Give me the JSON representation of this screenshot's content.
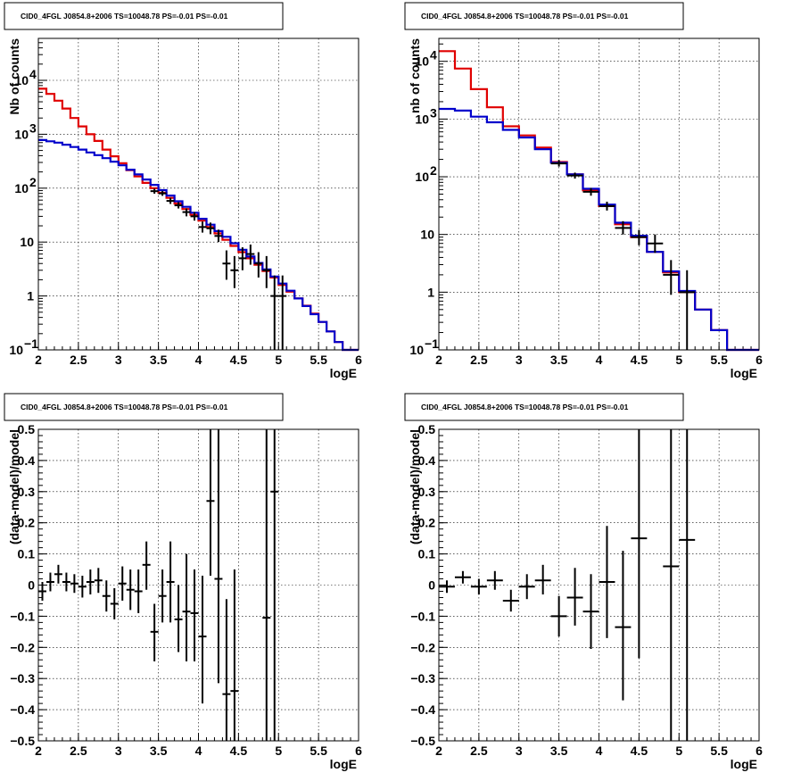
{
  "colors": {
    "data": "#000000",
    "model_total": "#e00000",
    "model_alt": "#0000cc"
  },
  "chart_data": [
    {
      "type": "line",
      "title": "CID0_4FGL J0854.8+2006 TS=10048.78 PS=-0.01 PS=-0.01",
      "xlabel": "logE",
      "ylabel": "Nb of counts",
      "xlim": [
        2,
        6
      ],
      "ylim": [
        0.1,
        60000
      ],
      "ylog": true,
      "grid": true,
      "xticks": [
        "2",
        "2.5",
        "3",
        "3.5",
        "4",
        "4.5",
        "5",
        "5.5",
        "6"
      ],
      "yticks": [
        {
          "v": 0.1,
          "base": "10",
          "exp": "−1"
        },
        {
          "v": 1,
          "base": "1",
          "exp": ""
        },
        {
          "v": 10,
          "base": "10",
          "exp": ""
        },
        {
          "v": 100,
          "base": "10",
          "exp": "2"
        },
        {
          "v": 1000,
          "base": "10",
          "exp": "3"
        },
        {
          "v": 10000,
          "base": "10",
          "exp": "4"
        }
      ],
      "bin_width": 0.1,
      "series": [
        {
          "color": "#e00000",
          "x0": 2.0,
          "values": [
            7000,
            5600,
            4200,
            3000,
            2000,
            1400,
            1000,
            750,
            520,
            390,
            290,
            215,
            165,
            125,
            100,
            82,
            66,
            52,
            41,
            32,
            25,
            19,
            14.5,
            11,
            8.5,
            6.5,
            5,
            3.8,
            2.9,
            2.2,
            1.6,
            1.2,
            0.9,
            0.66,
            0.47,
            0.33,
            0.22,
            0.14,
            0.1,
            0.1
          ]
        },
        {
          "color": "#0000cc",
          "x0": 2.0,
          "values": [
            780,
            740,
            700,
            640,
            580,
            520,
            460,
            410,
            360,
            310,
            265,
            220,
            180,
            145,
            115,
            92,
            73,
            57,
            45,
            35,
            27,
            21,
            16,
            12.5,
            9.5,
            7.2,
            5.4,
            4.1,
            3.1,
            2.3,
            1.7,
            1.25,
            0.9,
            0.65,
            0.46,
            0.33,
            0.22,
            0.14,
            0.1,
            0.1
          ]
        }
      ],
      "points": [
        {
          "x": 3.45,
          "y": 88,
          "lo": 79,
          "hi": 98
        },
        {
          "x": 3.55,
          "y": 80,
          "lo": 72,
          "hi": 89
        },
        {
          "x": 3.65,
          "y": 58,
          "lo": 51,
          "hi": 66
        },
        {
          "x": 3.75,
          "y": 48,
          "lo": 42,
          "hi": 55
        },
        {
          "x": 3.85,
          "y": 36,
          "lo": 30,
          "hi": 42
        },
        {
          "x": 3.95,
          "y": 30,
          "lo": 25,
          "hi": 36
        },
        {
          "x": 4.05,
          "y": 19,
          "lo": 15,
          "hi": 24
        },
        {
          "x": 4.15,
          "y": 18,
          "lo": 14,
          "hi": 23
        },
        {
          "x": 4.25,
          "y": 13,
          "lo": 10,
          "hi": 17
        },
        {
          "x": 4.35,
          "y": 4,
          "lo": 2,
          "hi": 7
        },
        {
          "x": 4.45,
          "y": 3,
          "lo": 1.4,
          "hi": 5.5
        },
        {
          "x": 4.55,
          "y": 5,
          "lo": 3,
          "hi": 8
        },
        {
          "x": 4.65,
          "y": 6,
          "lo": 3.8,
          "hi": 9
        },
        {
          "x": 4.75,
          "y": 4,
          "lo": 2.2,
          "hi": 6.5
        },
        {
          "x": 4.85,
          "y": 3,
          "lo": 1.4,
          "hi": 5.5
        },
        {
          "x": 4.95,
          "y": 1,
          "lo": 0.1,
          "hi": 2.4
        },
        {
          "x": 5.05,
          "y": 1,
          "lo": 0.1,
          "hi": 2.4
        }
      ]
    },
    {
      "type": "line",
      "title": "CID0_4FGL J0854.8+2006 TS=10048.78 PS=-0.01 PS=-0.01",
      "xlabel": "logE",
      "ylabel": "nb of counts",
      "xlim": [
        2,
        6
      ],
      "ylim": [
        0.1,
        25000
      ],
      "ylog": true,
      "grid": true,
      "xticks": [
        "2",
        "2.5",
        "3",
        "3.5",
        "4",
        "4.5",
        "5",
        "5.5",
        "6"
      ],
      "yticks": [
        {
          "v": 0.1,
          "base": "10",
          "exp": "−1"
        },
        {
          "v": 1,
          "base": "1",
          "exp": ""
        },
        {
          "v": 10,
          "base": "10",
          "exp": ""
        },
        {
          "v": 100,
          "base": "10",
          "exp": "2"
        },
        {
          "v": 1000,
          "base": "10",
          "exp": "3"
        },
        {
          "v": 10000,
          "base": "10",
          "exp": "4"
        }
      ],
      "bin_width": 0.2,
      "series": [
        {
          "color": "#e00000",
          "x0": 2.0,
          "values": [
            15000,
            7500,
            3300,
            1600,
            750,
            520,
            320,
            180,
            110,
            58,
            31,
            15,
            9,
            5,
            2.2,
            1,
            0.5,
            0.22,
            0.1,
            0.1
          ]
        },
        {
          "color": "#0000cc",
          "x0": 2.0,
          "values": [
            1500,
            1400,
            1100,
            880,
            650,
            480,
            300,
            175,
            110,
            62,
            33,
            16,
            9.5,
            5,
            2.3,
            1.05,
            0.5,
            0.22,
            0.1,
            0.1
          ]
        }
      ],
      "points": [
        {
          "x": 3.5,
          "y": 170,
          "lo": 150,
          "hi": 195
        },
        {
          "x": 3.7,
          "y": 105,
          "lo": 93,
          "hi": 118
        },
        {
          "x": 3.9,
          "y": 55,
          "lo": 47,
          "hi": 64
        },
        {
          "x": 4.1,
          "y": 31,
          "lo": 26,
          "hi": 37
        },
        {
          "x": 4.3,
          "y": 13,
          "lo": 10,
          "hi": 17
        },
        {
          "x": 4.5,
          "y": 9,
          "lo": 6.5,
          "hi": 12
        },
        {
          "x": 4.7,
          "y": 7,
          "lo": 4.8,
          "hi": 10
        },
        {
          "x": 4.9,
          "y": 2,
          "lo": 0.9,
          "hi": 3.6
        },
        {
          "x": 5.1,
          "y": 1,
          "lo": 0.1,
          "hi": 2.4
        }
      ]
    },
    {
      "type": "scatter",
      "title": "CID0_4FGL J0854.8+2006 TS=10048.78 PS=-0.01 PS=-0.01",
      "xlabel": "logE",
      "ylabel": "(data-model)/model",
      "xlim": [
        2,
        6
      ],
      "ylim": [
        -0.5,
        0.5
      ],
      "ylog": false,
      "grid": true,
      "xticks": [
        "2",
        "2.5",
        "3",
        "3.5",
        "4",
        "4.5",
        "5",
        "5.5",
        "6"
      ],
      "yticks_linear": [
        "−0.5",
        "−0.4",
        "−0.3",
        "−0.2",
        "−0.1",
        "0",
        "0.1",
        "0.2",
        "0.3",
        "0.4",
        "0.5"
      ],
      "bin_width": 0.1,
      "points": [
        {
          "x": 2.05,
          "y": -0.02,
          "lo": -0.05,
          "hi": 0.01
        },
        {
          "x": 2.15,
          "y": 0.01,
          "lo": -0.02,
          "hi": 0.04
        },
        {
          "x": 2.25,
          "y": 0.035,
          "lo": 0.005,
          "hi": 0.065
        },
        {
          "x": 2.35,
          "y": 0.01,
          "lo": -0.02,
          "hi": 0.04
        },
        {
          "x": 2.45,
          "y": 0.005,
          "lo": -0.025,
          "hi": 0.035
        },
        {
          "x": 2.55,
          "y": -0.005,
          "lo": -0.04,
          "hi": 0.03
        },
        {
          "x": 2.65,
          "y": 0.01,
          "lo": -0.03,
          "hi": 0.05
        },
        {
          "x": 2.75,
          "y": 0.015,
          "lo": -0.025,
          "hi": 0.055
        },
        {
          "x": 2.85,
          "y": -0.035,
          "lo": -0.085,
          "hi": 0.015
        },
        {
          "x": 2.95,
          "y": -0.06,
          "lo": -0.11,
          "hi": -0.01
        },
        {
          "x": 3.05,
          "y": 0.005,
          "lo": -0.05,
          "hi": 0.06
        },
        {
          "x": 3.15,
          "y": -0.015,
          "lo": -0.08,
          "hi": 0.05
        },
        {
          "x": 3.25,
          "y": -0.02,
          "lo": -0.09,
          "hi": 0.05
        },
        {
          "x": 3.35,
          "y": 0.065,
          "lo": -0.015,
          "hi": 0.14
        },
        {
          "x": 3.45,
          "y": -0.15,
          "lo": -0.245,
          "hi": -0.06
        },
        {
          "x": 3.55,
          "y": -0.035,
          "lo": -0.12,
          "hi": 0.05
        },
        {
          "x": 3.65,
          "y": 0.01,
          "lo": -0.12,
          "hi": 0.14
        },
        {
          "x": 3.75,
          "y": -0.11,
          "lo": -0.215,
          "hi": 0.0
        },
        {
          "x": 3.85,
          "y": -0.085,
          "lo": -0.245,
          "hi": 0.1
        },
        {
          "x": 3.95,
          "y": -0.09,
          "lo": -0.245,
          "hi": 0.05
        },
        {
          "x": 4.05,
          "y": -0.165,
          "lo": -0.38,
          "hi": 0.03
        },
        {
          "x": 4.15,
          "y": 0.27,
          "lo": 0.03,
          "hi": 0.5
        },
        {
          "x": 4.25,
          "y": 0.02,
          "lo": -0.315,
          "hi": 0.5
        },
        {
          "x": 4.35,
          "y": -0.35,
          "lo": -0.5,
          "hi": -0.045
        },
        {
          "x": 4.45,
          "y": -0.34,
          "lo": -0.5,
          "hi": 0.05
        },
        {
          "x": 4.85,
          "y": -0.105,
          "lo": -0.5,
          "hi": 0.5
        },
        {
          "x": 4.95,
          "y": 0.3,
          "lo": -0.5,
          "hi": 0.5
        }
      ]
    },
    {
      "type": "scatter",
      "title": "CID0_4FGL J0854.8+2006 TS=10048.78 PS=-0.01 PS=-0.01",
      "xlabel": "logE",
      "ylabel": "(data-model)/model",
      "xlim": [
        2,
        6
      ],
      "ylim": [
        -0.5,
        0.5
      ],
      "ylog": false,
      "grid": true,
      "xticks": [
        "2",
        "2.5",
        "3",
        "3.5",
        "4",
        "4.5",
        "5",
        "5.5",
        "6"
      ],
      "yticks_linear": [
        "−0.5",
        "−0.4",
        "−0.3",
        "−0.2",
        "−0.1",
        "0",
        "0.1",
        "0.2",
        "0.3",
        "0.4",
        "0.5"
      ],
      "bin_width": 0.2,
      "points": [
        {
          "x": 2.1,
          "y": -0.005,
          "lo": -0.025,
          "hi": 0.015
        },
        {
          "x": 2.3,
          "y": 0.025,
          "lo": 0.005,
          "hi": 0.045
        },
        {
          "x": 2.5,
          "y": -0.005,
          "lo": -0.03,
          "hi": 0.02
        },
        {
          "x": 2.7,
          "y": 0.015,
          "lo": -0.015,
          "hi": 0.045
        },
        {
          "x": 2.9,
          "y": -0.05,
          "lo": -0.085,
          "hi": -0.015
        },
        {
          "x": 3.1,
          "y": -0.005,
          "lo": -0.045,
          "hi": 0.035
        },
        {
          "x": 3.3,
          "y": 0.015,
          "lo": -0.03,
          "hi": 0.065
        },
        {
          "x": 3.5,
          "y": -0.1,
          "lo": -0.165,
          "hi": -0.035
        },
        {
          "x": 3.7,
          "y": -0.04,
          "lo": -0.13,
          "hi": 0.055
        },
        {
          "x": 3.9,
          "y": -0.085,
          "lo": -0.205,
          "hi": 0.035
        },
        {
          "x": 4.1,
          "y": 0.01,
          "lo": -0.17,
          "hi": 0.19
        },
        {
          "x": 4.3,
          "y": -0.135,
          "lo": -0.37,
          "hi": 0.11
        },
        {
          "x": 4.5,
          "y": 0.15,
          "lo": -0.235,
          "hi": 0.5
        },
        {
          "x": 4.9,
          "y": 0.06,
          "lo": -0.5,
          "hi": 0.5
        },
        {
          "x": 5.1,
          "y": 0.145,
          "lo": -0.5,
          "hi": 0.5
        }
      ]
    }
  ]
}
